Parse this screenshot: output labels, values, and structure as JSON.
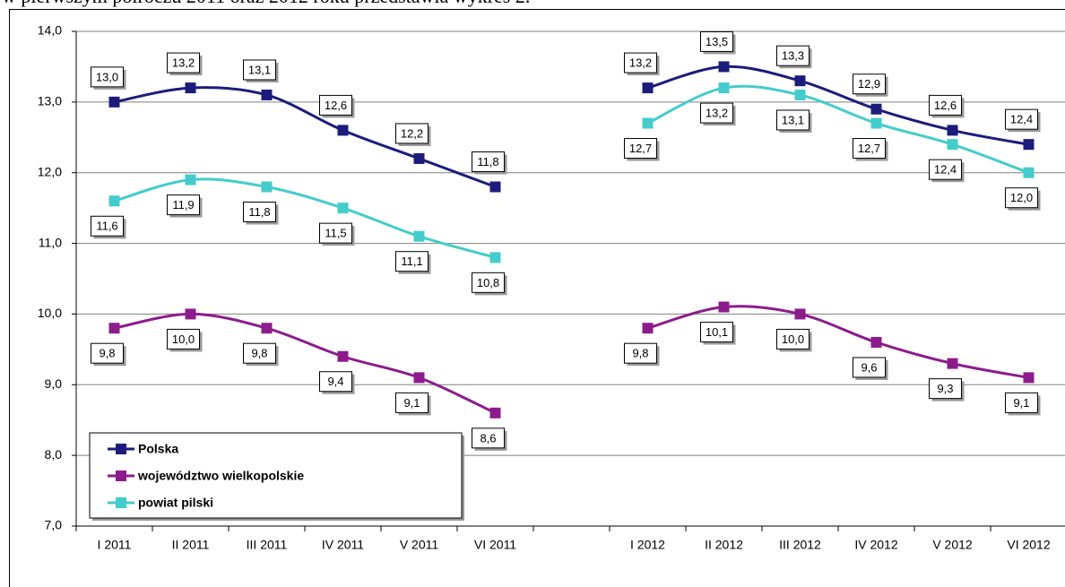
{
  "caption": "w pierwszym półroczu 2011 oraz 2012 roku przedstawia wykres 2.",
  "chart_data": {
    "type": "line",
    "categories": [
      "I 2011",
      "II 2011",
      "III 2011",
      "IV 2011",
      "V 2011",
      "VI 2011",
      null,
      "I 2012",
      "II 2012",
      "III 2012",
      "IV 2012",
      "V 2012",
      "VI 2012"
    ],
    "series": [
      {
        "name": "Polska",
        "color": "#1c1c7c",
        "values": [
          13.0,
          13.2,
          13.1,
          12.6,
          12.2,
          11.8,
          null,
          13.2,
          13.5,
          13.3,
          12.9,
          12.6,
          12.4
        ],
        "value_labels": [
          "13,0",
          "13,2",
          "13,1",
          "12,6",
          "12,2",
          "11,8",
          null,
          "13,2",
          "13,5",
          "13,3",
          "12,9",
          "12,6",
          "12,4"
        ]
      },
      {
        "name": "województwo wielkopolskie",
        "color": "#8c1c8c",
        "values": [
          9.8,
          10.0,
          9.8,
          9.4,
          9.1,
          8.6,
          null,
          9.8,
          10.1,
          10.0,
          9.6,
          9.3,
          9.1
        ],
        "value_labels": [
          "9,8",
          "10,0",
          "9,8",
          "9,4",
          "9,1",
          "8,6",
          null,
          "9,8",
          "10,1",
          "10,0",
          "9,6",
          "9,3",
          "9,1"
        ]
      },
      {
        "name": "powiat pilski",
        "color": "#44cccc",
        "values": [
          11.6,
          11.9,
          11.8,
          11.5,
          11.1,
          10.8,
          null,
          12.7,
          13.2,
          13.1,
          12.7,
          12.4,
          12.0
        ],
        "value_labels": [
          "11,6",
          "11,9",
          "11,8",
          "11,5",
          "11,1",
          "10,8",
          null,
          "12,7",
          "13,2",
          "13,1",
          "12,7",
          "12,4",
          "12,0"
        ]
      }
    ],
    "ylim": [
      7,
      14
    ],
    "yticks": [
      {
        "value": 7,
        "label": "7,0"
      },
      {
        "value": 8,
        "label": "8,0"
      },
      {
        "value": 9,
        "label": "9,0"
      },
      {
        "value": 10,
        "label": "10,0"
      },
      {
        "value": 11,
        "label": "11,0"
      },
      {
        "value": 12,
        "label": "12,0"
      },
      {
        "value": 13,
        "label": "13,0"
      },
      {
        "value": 14,
        "label": "14,0"
      }
    ],
    "grid": true,
    "legend": "lower left"
  }
}
